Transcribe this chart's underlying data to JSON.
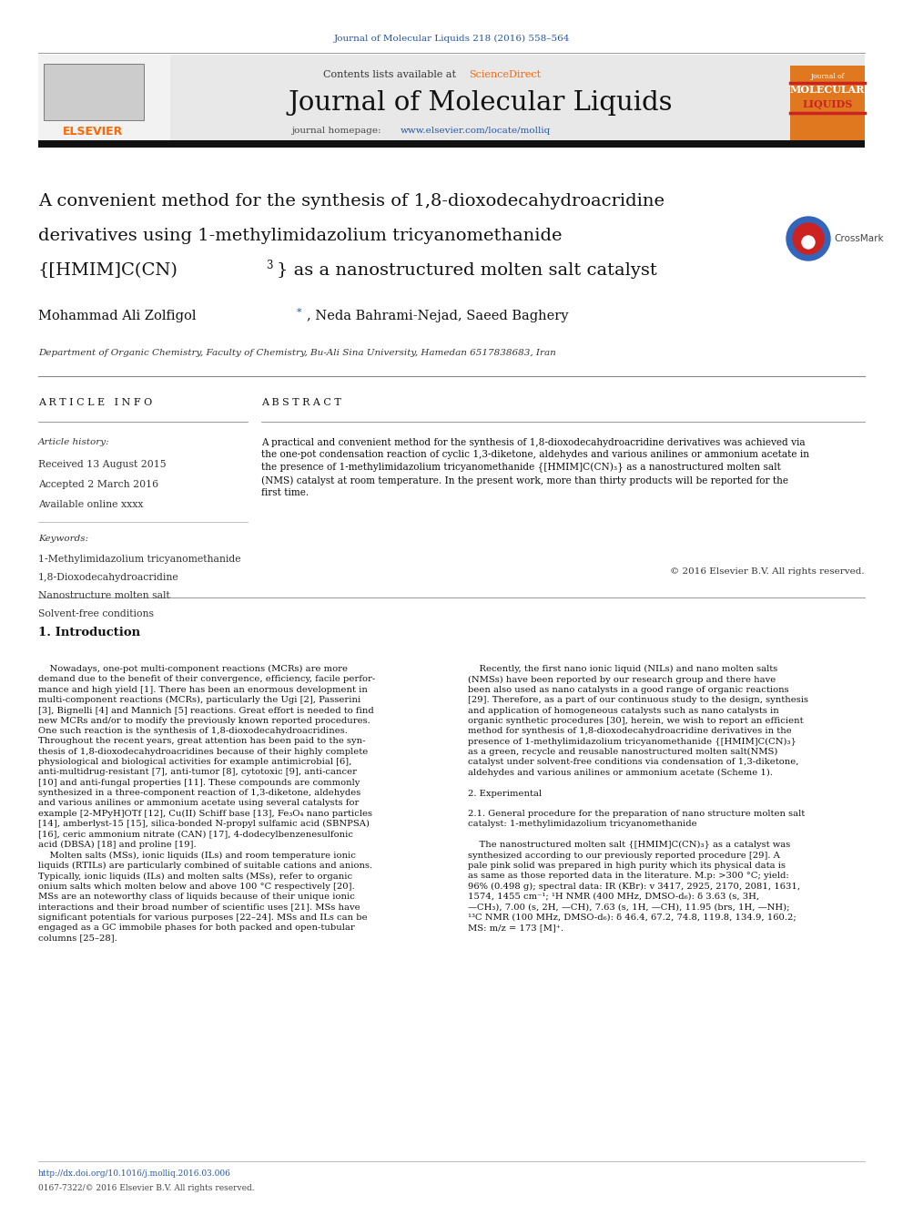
{
  "page_width": 9.92,
  "page_height": 13.23,
  "bg_color": "#ffffff",
  "journal_ref": "Journal of Molecular Liquids 218 (2016) 558–564",
  "journal_ref_color": "#2255aa",
  "contents_text": "Contents lists available at ",
  "sciencedirect_text": "ScienceDirect",
  "sciencedirect_color": "#ff6600",
  "journal_name": "Journal of Molecular Liquids",
  "homepage_text": "journal homepage: ",
  "homepage_url": "www.elsevier.com/locate/molliq",
  "homepage_url_color": "#2255aa",
  "header_bg": "#e8e8e8",
  "orange_box_color": "#e07820",
  "paper_title_line1": "A convenient method for the synthesis of 1,8-dioxodecahydroacridine",
  "paper_title_line2": "derivatives using 1-methylimidazolium tricyanomethanide",
  "paper_title_line3a": "{[HMIM]C(CN)",
  "paper_title_line3b": "3",
  "paper_title_line3c": "} as a nanostructured molten salt catalyst",
  "authors": "Mohammad Ali Zolfigol *, Neda Bahrami-Nejad, Saeed Baghery",
  "affiliation": "Department of Organic Chemistry, Faculty of Chemistry, Bu-Ali Sina University, Hamedan 6517838683, Iran",
  "article_info_header": "A R T I C L E   I N F O",
  "abstract_header": "A B S T R A C T",
  "article_history_label": "Article history:",
  "received": "Received 13 August 2015",
  "accepted": "Accepted 2 March 2016",
  "available": "Available online xxxx",
  "keywords_label": "Keywords:",
  "keyword1": "1-Methylimidazolium tricyanomethanide",
  "keyword2": "1,8-Dioxodecahydroacridine",
  "keyword3": "Nanostructure molten salt",
  "keyword4": "Solvent-free conditions",
  "abstract_text": "A practical and convenient method for the synthesis of 1,8-dioxodecahydroacridine derivatives was achieved via\nthe one-pot condensation reaction of cyclic 1,3-diketone, aldehydes and various anilines or ammonium acetate in\nthe presence of 1-methylimidazolium tricyanomethanide {[HMIM]C(CN)₃} as a nanostructured molten salt\n(NMS) catalyst at room temperature. In the present work, more than thirty products will be reported for the\nfirst time.",
  "copyright": "© 2016 Elsevier B.V. All rights reserved.",
  "section1_title": "1. Introduction",
  "intro_col1": "    Nowadays, one-pot multi-component reactions (MCRs) are more\ndemand due to the benefit of their convergence, efficiency, facile perfor-\nmance and high yield [1]. There has been an enormous development in\nmulti-component reactions (MCRs), particularly the Ugi [2], Passerini\n[3], Bignelli [4] and Mannich [5] reactions. Great effort is needed to find\nnew MCRs and/or to modify the previously known reported procedures.\nOne such reaction is the synthesis of 1,8-dioxodecahydroacridines.\nThroughout the recent years, great attention has been paid to the syn-\nthesis of 1,8-dioxodecahydroacridines because of their highly complete\nphysiological and biological activities for example antimicrobial [6],\nanti-multidrug-resistant [7], anti-tumor [8], cytotoxic [9], anti-cancer\n[10] and anti-fungal properties [11]. These compounds are commonly\nsynthesized in a three-component reaction of 1,3-diketone, aldehydes\nand various anilines or ammonium acetate using several catalysts for\nexample [2-MPyH]OTf [12], Cu(II) Schiff base [13], Fe₃O₄ nano particles\n[14], amberlyst-15 [15], silica-bonded N-propyl sulfamic acid (SBNPSA)\n[16], ceric ammonium nitrate (CAN) [17], 4-dodecylbenzenesulfonic\nacid (DBSA) [18] and proline [19].\n    Molten salts (MSs), ionic liquids (ILs) and room temperature ionic\nliquids (RTILs) are particularly combined of suitable cations and anions.\nTypically, ionic liquids (ILs) and molten salts (MSs), refer to organic\nonium salts which molten below and above 100 °C respectively [20].\nMSs are an noteworthy class of liquids because of their unique ionic\ninteractions and their broad number of scientific uses [21]. MSs have\nsignificant potentials for various purposes [22–24]. MSs and ILs can be\nengaged as a GC immobile phases for both packed and open-tubular\ncolumns [25–28].",
  "intro_col2": "    Recently, the first nano ionic liquid (NILs) and nano molten salts\n(NMSs) have been reported by our research group and there have\nbeen also used as nano catalysts in a good range of organic reactions\n[29]. Therefore, as a part of our continuous study to the design, synthesis\nand application of homogeneous catalysts such as nano catalysts in\norganic synthetic procedures [30], herein, we wish to report an efficient\nmethod for synthesis of 1,8-dioxodecahydroacridine derivatives in the\npresence of 1-methylimidazolium tricyanomethanide {[HMIM]C(CN)₃}\nas a green, recycle and reusable nanostructured molten salt(NMS)\ncatalyst under solvent-free conditions via condensation of 1,3-diketone,\naldehydes and various anilines or ammonium acetate (Scheme 1).\n\n2. Experimental\n\n2.1. General procedure for the preparation of nano structure molten salt\ncatalyst: 1-methylimidazolium tricyanomethanide\n\n    The nanostructured molten salt {[HMIM]C(CN)₃} as a catalyst was\nsynthesized according to our previously reported procedure [29]. A\npale pink solid was prepared in high purity which its physical data is\nas same as those reported data in the literature. M.p: >300 °C; yield:\n96% (0.498 g); spectral data: IR (KBr): v 3417, 2925, 2170, 2081, 1631,\n1574, 1455 cm⁻¹; ¹H NMR (400 MHz, DMSO-d₆): δ 3.63 (s, 3H,\n—CH₃), 7.00 (s, 2H, —CH), 7.63 (s, 1H, —CH), 11.95 (brs, 1H, —NH);\n¹³C NMR (100 MHz, DMSO-d₆): δ 46.4, 67.2, 74.8, 119.8, 134.9, 160.2;\nMS: m/z = 173 [M]⁺.",
  "doi_text": "http://dx.doi.org/10.1016/j.molliq.2016.03.006",
  "doi_color": "#2255aa",
  "issn_text": "0167-7322/© 2016 Elsevier B.V. All rights reserved.",
  "elsevier_text": "ELSEVIER",
  "elsevier_color": "#ff6600"
}
